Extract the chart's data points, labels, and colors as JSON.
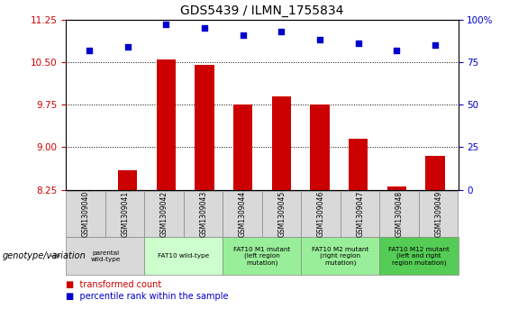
{
  "title": "GDS5439 / ILMN_1755834",
  "samples": [
    "GSM1309040",
    "GSM1309041",
    "GSM1309042",
    "GSM1309043",
    "GSM1309044",
    "GSM1309045",
    "GSM1309046",
    "GSM1309047",
    "GSM1309048",
    "GSM1309049"
  ],
  "transformed_count": [
    8.25,
    8.6,
    10.55,
    10.45,
    9.75,
    9.9,
    9.75,
    9.15,
    8.3,
    8.85
  ],
  "percentile_rank": [
    82,
    84,
    97,
    95,
    91,
    93,
    88,
    86,
    82,
    85
  ],
  "ylim_left": [
    8.25,
    11.25
  ],
  "yticks_left": [
    8.25,
    9.0,
    9.75,
    10.5,
    11.25
  ],
  "ylim_right": [
    0,
    100
  ],
  "yticks_right": [
    0,
    25,
    50,
    75,
    100
  ],
  "bar_color": "#cc0000",
  "dot_color": "#0000cc",
  "bar_baseline": 8.25,
  "groups": [
    {
      "label": "parental\nwild-type",
      "start": 0,
      "end": 2,
      "color": "#d9d9d9"
    },
    {
      "label": "FAT10 wild-type",
      "start": 2,
      "end": 4,
      "color": "#ccffcc"
    },
    {
      "label": "FAT10 M1 mutant\n(left region\nmutation)",
      "start": 4,
      "end": 6,
      "color": "#99ee99"
    },
    {
      "label": "FAT10 M2 mutant\n(right region\nmutation)",
      "start": 6,
      "end": 8,
      "color": "#99ee99"
    },
    {
      "label": "FAT10 M12 mutant\n(left and right\nregion mutation)",
      "start": 8,
      "end": 10,
      "color": "#55cc55"
    }
  ],
  "legend_red": "transformed count",
  "legend_blue": "percentile rank within the sample",
  "genotype_label": "genotype/variation"
}
